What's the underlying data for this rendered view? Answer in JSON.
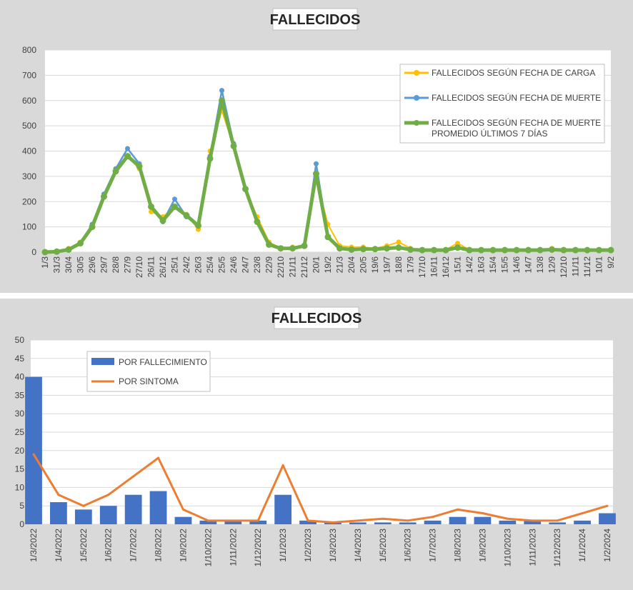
{
  "charts": [
    {
      "title": "FALLECIDOS",
      "chart_data": {
        "type": "line",
        "title": "FALLECIDOS",
        "ylim": [
          0,
          800
        ],
        "y_ticks": [
          "0",
          "100",
          "200",
          "300",
          "400",
          "500",
          "600",
          "700",
          "800"
        ],
        "grid": true,
        "legend_position": "top-right",
        "categories": [
          "1/3",
          "31/3",
          "30/4",
          "30/5",
          "29/6",
          "29/7",
          "28/8",
          "27/9",
          "27/10",
          "26/11",
          "26/12",
          "25/1",
          "24/2",
          "26/3",
          "25/4",
          "25/5",
          "24/6",
          "24/7",
          "23/8",
          "22/9",
          "22/10",
          "21/11",
          "21/12",
          "20/1",
          "19/2",
          "21/3",
          "20/4",
          "20/5",
          "19/6",
          "19/7",
          "18/8",
          "17/9",
          "17/10",
          "16/11",
          "16/12",
          "15/1",
          "14/2",
          "16/3",
          "15/4",
          "15/5",
          "14/6",
          "14/7",
          "13/8",
          "12/9",
          "12/10",
          "11/11",
          "11/12",
          "10/1",
          "9/2"
        ],
        "series": [
          {
            "name": "FALLECIDOS SEGÚN FECHA DE CARGA",
            "color": "#ffc000",
            "values": [
              0,
              5,
              15,
              40,
              110,
              220,
              330,
              380,
              330,
              160,
              140,
              180,
              150,
              90,
              400,
              560,
              420,
              250,
              140,
              40,
              15,
              20,
              25,
              290,
              110,
              25,
              20,
              20,
              15,
              25,
              40,
              15,
              10,
              10,
              10,
              35,
              10,
              10,
              10,
              10,
              10,
              10,
              10,
              15,
              10,
              10,
              10,
              10,
              10
            ]
          },
          {
            "name": "FALLECIDOS SEGÚN FECHA DE MUERTE",
            "color": "#5b9bd5",
            "values": [
              0,
              2,
              10,
              35,
              110,
              230,
              330,
              410,
              350,
              180,
              120,
              210,
              140,
              110,
              380,
              640,
              430,
              250,
              120,
              30,
              15,
              15,
              25,
              350,
              60,
              15,
              10,
              12,
              12,
              15,
              20,
              10,
              8,
              8,
              8,
              20,
              8,
              8,
              8,
              8,
              8,
              8,
              8,
              10,
              8,
              8,
              8,
              8,
              8
            ]
          },
          {
            "name": "FALLECIDOS SEGÚN FECHA DE MUERTE PROMEDIO ÚLTIMOS 7 DÍAS",
            "color": "#70ad47",
            "values": [
              0,
              2,
              10,
              35,
              100,
              220,
              320,
              380,
              340,
              180,
              125,
              180,
              145,
              105,
              370,
              600,
              420,
              250,
              120,
              30,
              15,
              15,
              25,
              310,
              60,
              15,
              10,
              12,
              12,
              15,
              18,
              10,
              8,
              8,
              8,
              18,
              8,
              8,
              8,
              8,
              8,
              8,
              8,
              10,
              8,
              8,
              8,
              8,
              8
            ]
          }
        ]
      }
    },
    {
      "title": "FALLECIDOS",
      "chart_data": {
        "type": "bar",
        "title": "FALLECIDOS",
        "ylim": [
          0,
          50
        ],
        "y_ticks": [
          "0",
          "5",
          "10",
          "15",
          "20",
          "25",
          "30",
          "35",
          "40",
          "45",
          "50"
        ],
        "grid": true,
        "legend_position": "top-left",
        "categories": [
          "1/3/2022",
          "1/4/2022",
          "1/5/2022",
          "1/6/2022",
          "1/7/2022",
          "1/8/2022",
          "1/9/2022",
          "1/10/2022",
          "1/11/2022",
          "1/12/2022",
          "1/1/2023",
          "1/2/2023",
          "1/3/2023",
          "1/4/2023",
          "1/5/2023",
          "1/6/2023",
          "1/7/2023",
          "1/8/2023",
          "1/9/2023",
          "1/10/2023",
          "1/11/2023",
          "1/12/2023",
          "1/1/2024",
          "1/2/2024"
        ],
        "series": [
          {
            "name": "POR FALLECIMIENTO",
            "color": "#4472c4",
            "kind": "bar",
            "values": [
              40,
              6,
              4,
              5,
              8,
              9,
              2,
              1,
              1,
              1,
              8,
              1,
              0.5,
              0.5,
              0.5,
              0.5,
              1,
              2,
              2,
              1,
              1,
              0.5,
              1,
              3
            ]
          },
          {
            "name": "POR SINTOMA",
            "color": "#ed7d31",
            "kind": "line",
            "values": [
              19,
              8,
              5,
              8,
              13,
              18,
              4,
              1,
              1,
              1,
              16,
              1,
              0.5,
              1,
              1.5,
              1,
              2,
              4,
              3,
              1.5,
              1,
              1,
              3,
              5
            ]
          }
        ]
      }
    }
  ]
}
